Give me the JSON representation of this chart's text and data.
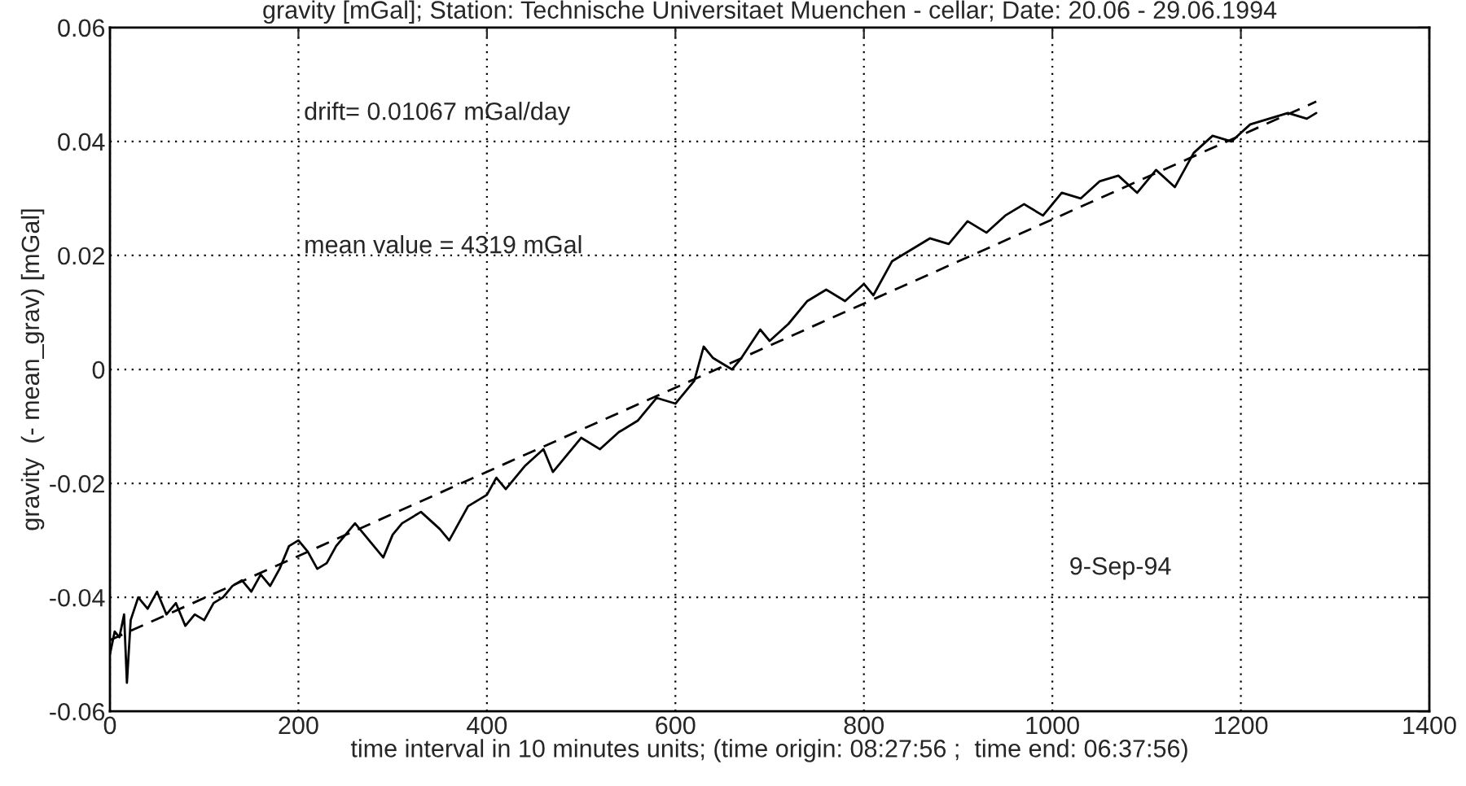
{
  "chart_data": {
    "type": "line",
    "title": "gravity [mGal]; Station: Technische Universitaet Muenchen - cellar; Date: 20.06 - 29.06.1994",
    "xlabel": "time interval in 10 minutes units; (time origin: 08:27:56 ;  time end: 06:37:56)",
    "ylabel": "gravity  (- mean_grav) [mGal]",
    "annotations": [
      "drift= 0.01067 mGal/day",
      "mean value = 4319 mGal",
      "9-Sep-94"
    ],
    "xlim": [
      0,
      1400
    ],
    "xticks": [
      0,
      200,
      400,
      600,
      800,
      1000,
      1200,
      1400
    ],
    "ylim": [
      -0.06,
      0.06
    ],
    "yticks": [
      {
        "value": -0.06,
        "label": "-0.06"
      },
      {
        "value": -0.04,
        "label": "-0.04"
      },
      {
        "value": -0.02,
        "label": "-0.02"
      },
      0,
      0.02,
      0.04,
      0.06
    ],
    "grid": true,
    "legend": false,
    "series": [
      {
        "color": "#000000",
        "line_style": "solid",
        "x": [
          0,
          5,
          10,
          15,
          18,
          22,
          30,
          40,
          50,
          60,
          70,
          80,
          90,
          100,
          110,
          120,
          130,
          140,
          150,
          160,
          170,
          180,
          190,
          200,
          210,
          220,
          230,
          240,
          250,
          260,
          280,
          290,
          300,
          310,
          330,
          350,
          360,
          380,
          390,
          400,
          410,
          420,
          440,
          460,
          470,
          480,
          500,
          520,
          540,
          560,
          580,
          600,
          620,
          630,
          640,
          660,
          670,
          690,
          700,
          720,
          740,
          760,
          780,
          800,
          810,
          830,
          850,
          870,
          890,
          910,
          930,
          950,
          970,
          990,
          1010,
          1030,
          1050,
          1070,
          1090,
          1110,
          1130,
          1150,
          1170,
          1190,
          1210,
          1230,
          1250,
          1270,
          1280
        ],
        "values": [
          -0.05,
          -0.046,
          -0.047,
          -0.043,
          -0.055,
          -0.044,
          -0.04,
          -0.042,
          -0.039,
          -0.043,
          -0.041,
          -0.045,
          -0.043,
          -0.044,
          -0.041,
          -0.04,
          -0.038,
          -0.037,
          -0.039,
          -0.036,
          -0.038,
          -0.035,
          -0.031,
          -0.03,
          -0.032,
          -0.035,
          -0.034,
          -0.031,
          -0.029,
          -0.027,
          -0.031,
          -0.033,
          -0.029,
          -0.027,
          -0.025,
          -0.028,
          -0.03,
          -0.024,
          -0.023,
          -0.022,
          -0.019,
          -0.021,
          -0.017,
          -0.014,
          -0.018,
          -0.016,
          -0.012,
          -0.014,
          -0.011,
          -0.009,
          -0.005,
          -0.006,
          -0.002,
          0.004,
          0.002,
          0.0,
          0.002,
          0.007,
          0.005,
          0.008,
          0.012,
          0.014,
          0.012,
          0.015,
          0.013,
          0.019,
          0.021,
          0.023,
          0.022,
          0.026,
          0.024,
          0.027,
          0.029,
          0.027,
          0.031,
          0.03,
          0.033,
          0.034,
          0.031,
          0.035,
          0.032,
          0.038,
          0.041,
          0.04,
          0.043,
          0.044,
          0.045,
          0.044,
          0.045
        ]
      },
      {
        "color": "#000000",
        "line_style": "dashed",
        "x": [
          0,
          1280
        ],
        "values": [
          -0.0475,
          0.047
        ]
      }
    ]
  }
}
